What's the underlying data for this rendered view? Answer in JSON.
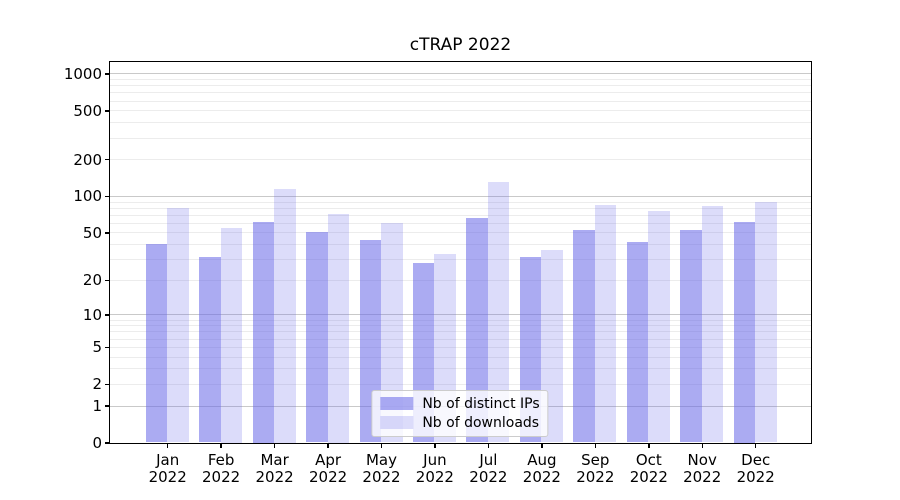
{
  "title": "cTRAP 2022",
  "chart_data": {
    "type": "bar",
    "title": "cTRAP 2022",
    "categories": [
      "Jan",
      "Feb",
      "Mar",
      "Apr",
      "May",
      "Jun",
      "Jul",
      "Aug",
      "Sep",
      "Oct",
      "Nov",
      "Dec"
    ],
    "category_year": "2022",
    "series": [
      {
        "name": "Nb of distinct IPs",
        "values": [
          40,
          31,
          61,
          50,
          43,
          28,
          66,
          31,
          52,
          42,
          52,
          61
        ],
        "fill": "rgba(102,102,232,0.55)",
        "approx_hex": "#aaaaf2"
      },
      {
        "name": "Nb of downloads",
        "values": [
          80,
          55,
          115,
          71,
          60,
          33,
          130,
          36,
          84,
          75,
          82,
          89
        ],
        "fill": "rgba(102,102,232,0.23)",
        "approx_hex": "#dcdcf9"
      }
    ],
    "xlabel": "",
    "ylabel": "",
    "yscale": "log1p",
    "ylim": [
      0,
      1250
    ],
    "y_tick_values": [
      1000,
      500,
      200,
      100,
      50,
      20,
      10,
      5,
      2,
      1,
      0
    ],
    "y_tick_labels": [
      "1000",
      "500",
      "200",
      "100",
      "50",
      "20",
      "10",
      "5",
      "2",
      "1",
      "0"
    ],
    "grid": {
      "horizontal": true,
      "major_values": [
        1,
        10,
        100,
        1000
      ],
      "major_color": "#c9c9c9",
      "minor_color": "#ececec"
    },
    "legend_position": "lower center",
    "axis_color": "#000000"
  }
}
